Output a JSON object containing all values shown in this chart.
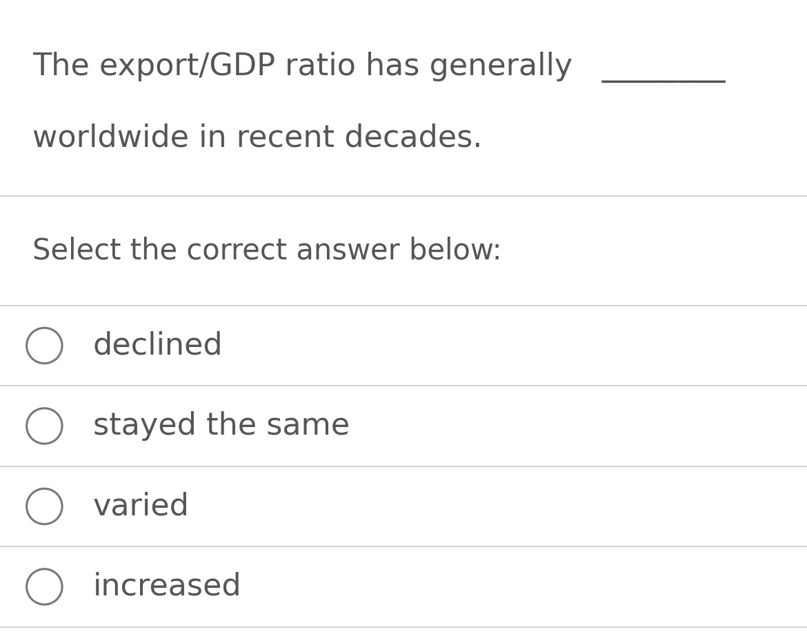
{
  "background_color": "#ffffff",
  "text_color": "#555555",
  "question_line1": "The export/GDP ratio has generally   ________",
  "question_line2": "worldwide in recent decades.",
  "prompt_text": "Select the correct answer below:",
  "options": [
    "declined",
    "stayed the same",
    "varied",
    "increased"
  ],
  "font_size_question": 32,
  "font_size_prompt": 30,
  "font_size_options": 32,
  "circle_color": "#777777",
  "divider_color": "#cccccc",
  "divider_linewidth": 1.2,
  "figwidth": 11.7,
  "figheight": 9.32,
  "dpi": 100
}
